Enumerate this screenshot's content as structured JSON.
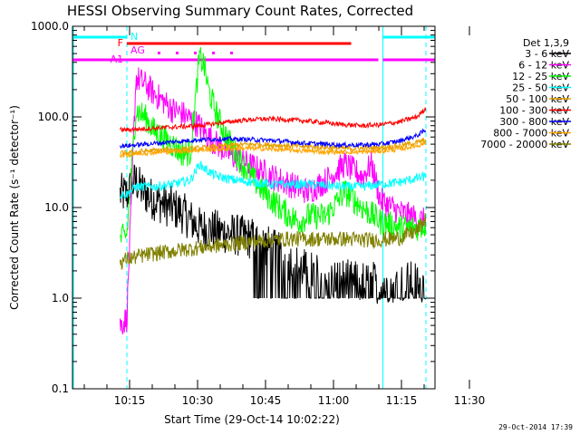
{
  "chart_data": {
    "type": "line",
    "title": "HESSI Observing Summary Count Rates, Corrected",
    "xlabel": "Start Time (29-Oct-14 10:02:22)",
    "ylabel": "Corrected Count Rate (s⁻¹ detector⁻¹)",
    "yscale": "log",
    "ylim": [
      0.1,
      1000
    ],
    "xlim_minutes": [
      0,
      80
    ],
    "x_unit": "minutes after 10:02:22",
    "y_tick_labels": [
      "0.1",
      "1.0",
      "10.0",
      "100.0",
      "1000.0"
    ],
    "y_tick_values": [
      0.1,
      1,
      10,
      100,
      1000
    ],
    "x_tick_labels": [
      "10:15",
      "10:30",
      "10:45",
      "11:00",
      "11:15",
      "11:30"
    ],
    "x_tick_values": [
      12.6,
      27.6,
      42.6,
      57.6,
      72.6,
      87.6
    ],
    "grid": false,
    "legend_title": "Det 1,3,9",
    "legend_position": "right",
    "footer_text": "29-Oct-2014 17:39",
    "series": [
      {
        "name": "3 - 6 keV",
        "color": "#000000",
        "x": [
          10.5,
          12,
          14,
          15,
          17,
          20,
          24,
          28,
          32,
          36,
          40,
          42,
          44,
          46,
          48,
          50,
          52,
          54,
          56,
          58,
          60,
          62,
          64,
          66,
          68,
          70,
          72,
          74,
          78
        ],
        "y": [
          14,
          14,
          20,
          16,
          13,
          11,
          9,
          6,
          5.5,
          5,
          4.5,
          4,
          3.5,
          3,
          2.5,
          2.2,
          2,
          1.8,
          1.7,
          1.6,
          1.6,
          1.5,
          1.5,
          1.5,
          1.5,
          1.5,
          1.5,
          1.5,
          1.5
        ]
      },
      {
        "name": "6 - 12 keV",
        "color": "#ff00ff",
        "x": [
          10.5,
          12,
          14,
          16,
          18,
          20,
          22,
          24,
          26,
          28,
          30,
          33,
          36,
          40,
          44,
          48,
          52,
          56,
          60,
          64,
          66,
          68,
          72,
          76,
          78
        ],
        "y": [
          0.5,
          0.6,
          270,
          230,
          180,
          150,
          120,
          110,
          95,
          80,
          60,
          45,
          35,
          28,
          22,
          18,
          15,
          20,
          30,
          22,
          30,
          12,
          9,
          7.5,
          7
        ]
      },
      {
        "name": "12 - 25 keV",
        "color": "#00ff00",
        "x": [
          10.5,
          12,
          14,
          16,
          18,
          20,
          22,
          24,
          26,
          28,
          29,
          30,
          32,
          34,
          36,
          40,
          44,
          48,
          50,
          52,
          56,
          60,
          64,
          68,
          72,
          76,
          78
        ],
        "y": [
          4.5,
          5,
          120,
          100,
          70,
          60,
          50,
          40,
          40,
          450,
          380,
          200,
          100,
          60,
          40,
          20,
          12,
          8,
          7,
          8,
          8,
          15,
          10,
          7,
          6,
          6,
          6.5
        ]
      },
      {
        "name": "25 - 50 keV",
        "color": "#00ffff",
        "x": [
          10.5,
          12,
          14,
          18,
          22,
          26,
          28,
          30,
          32,
          36,
          40,
          44,
          48,
          52,
          56,
          60,
          64,
          68,
          72,
          76,
          78
        ],
        "y": [
          14,
          14,
          17,
          17,
          18,
          20,
          30,
          25,
          22,
          20,
          19,
          18,
          18,
          18,
          17.5,
          17,
          17,
          18,
          19,
          21,
          22
        ]
      },
      {
        "name": "50 - 100 keV",
        "color": "#e6a000",
        "x": [
          10.5,
          12,
          16,
          20,
          24,
          28,
          32,
          36,
          40,
          44,
          48,
          52,
          56,
          60,
          64,
          68,
          72,
          76,
          78
        ],
        "y": [
          40,
          40,
          42,
          43,
          44,
          45,
          47,
          49,
          50,
          49,
          48,
          47,
          46,
          45,
          45,
          46,
          48,
          52,
          56
        ]
      },
      {
        "name": "100 - 300 keV",
        "color": "#ff0000",
        "x": [
          10.5,
          12,
          16,
          20,
          24,
          28,
          32,
          36,
          40,
          44,
          48,
          52,
          56,
          60,
          64,
          68,
          72,
          76,
          78
        ],
        "y": [
          72,
          72,
          74,
          76,
          78,
          80,
          85,
          90,
          94,
          95,
          93,
          90,
          86,
          82,
          80,
          82,
          88,
          100,
          125
        ]
      },
      {
        "name": "300 - 800 keV",
        "color": "#0000ff",
        "x": [
          10.5,
          12,
          16,
          20,
          24,
          28,
          32,
          36,
          40,
          44,
          48,
          52,
          56,
          60,
          64,
          68,
          72,
          76,
          78
        ],
        "y": [
          48,
          48,
          50,
          52,
          54,
          56,
          57,
          57,
          56,
          55,
          53,
          51,
          50,
          49,
          49,
          50,
          54,
          62,
          72
        ]
      },
      {
        "name": "800 - 7000 keV",
        "color": "#ffa500",
        "x": [
          10.5,
          12,
          16,
          20,
          24,
          28,
          32,
          36,
          40,
          44,
          48,
          52,
          56,
          60,
          64,
          68,
          72,
          76,
          78
        ],
        "y": [
          38,
          38,
          40,
          41,
          42,
          43,
          44,
          45,
          45,
          44,
          43,
          42,
          41,
          41,
          41,
          42,
          44,
          48,
          52
        ]
      },
      {
        "name": "7000 - 20000 keV",
        "color": "#808000",
        "x": [
          10.5,
          12,
          16,
          20,
          24,
          28,
          32,
          36,
          40,
          44,
          48,
          52,
          56,
          60,
          64,
          68,
          72,
          76,
          78
        ],
        "y": [
          2.5,
          2.7,
          3,
          3.2,
          3.4,
          3.6,
          3.8,
          4,
          4.2,
          4.4,
          4.5,
          4.5,
          4.5,
          4.5,
          4.4,
          4.4,
          4.6,
          5.5,
          7.5
        ]
      }
    ],
    "flag_bars": [
      {
        "label": "N",
        "color": "#00ffff",
        "segments": [
          [
            0,
            12
          ],
          [
            68.5,
            80
          ]
        ]
      },
      {
        "label": "F",
        "color": "#ff0000",
        "segments": [
          [
            12,
            61.5
          ]
        ]
      },
      {
        "label": "AG",
        "color": "#ff00ff",
        "segments": []
      },
      {
        "label": "A1",
        "color": "#ff00ff",
        "segments": [
          [
            0,
            12
          ],
          [
            12,
            67.5
          ],
          [
            68.5,
            80
          ]
        ]
      }
    ],
    "ag_dots_x": [
      19,
      23,
      27,
      31,
      35
    ],
    "vertical_markers": [
      {
        "x": 12,
        "color": "#00ffff",
        "style": "dashed"
      },
      {
        "x": 68.5,
        "color": "#00ffff",
        "style": "solid"
      },
      {
        "x": 78,
        "color": "#00ffff",
        "style": "dashed"
      }
    ]
  }
}
